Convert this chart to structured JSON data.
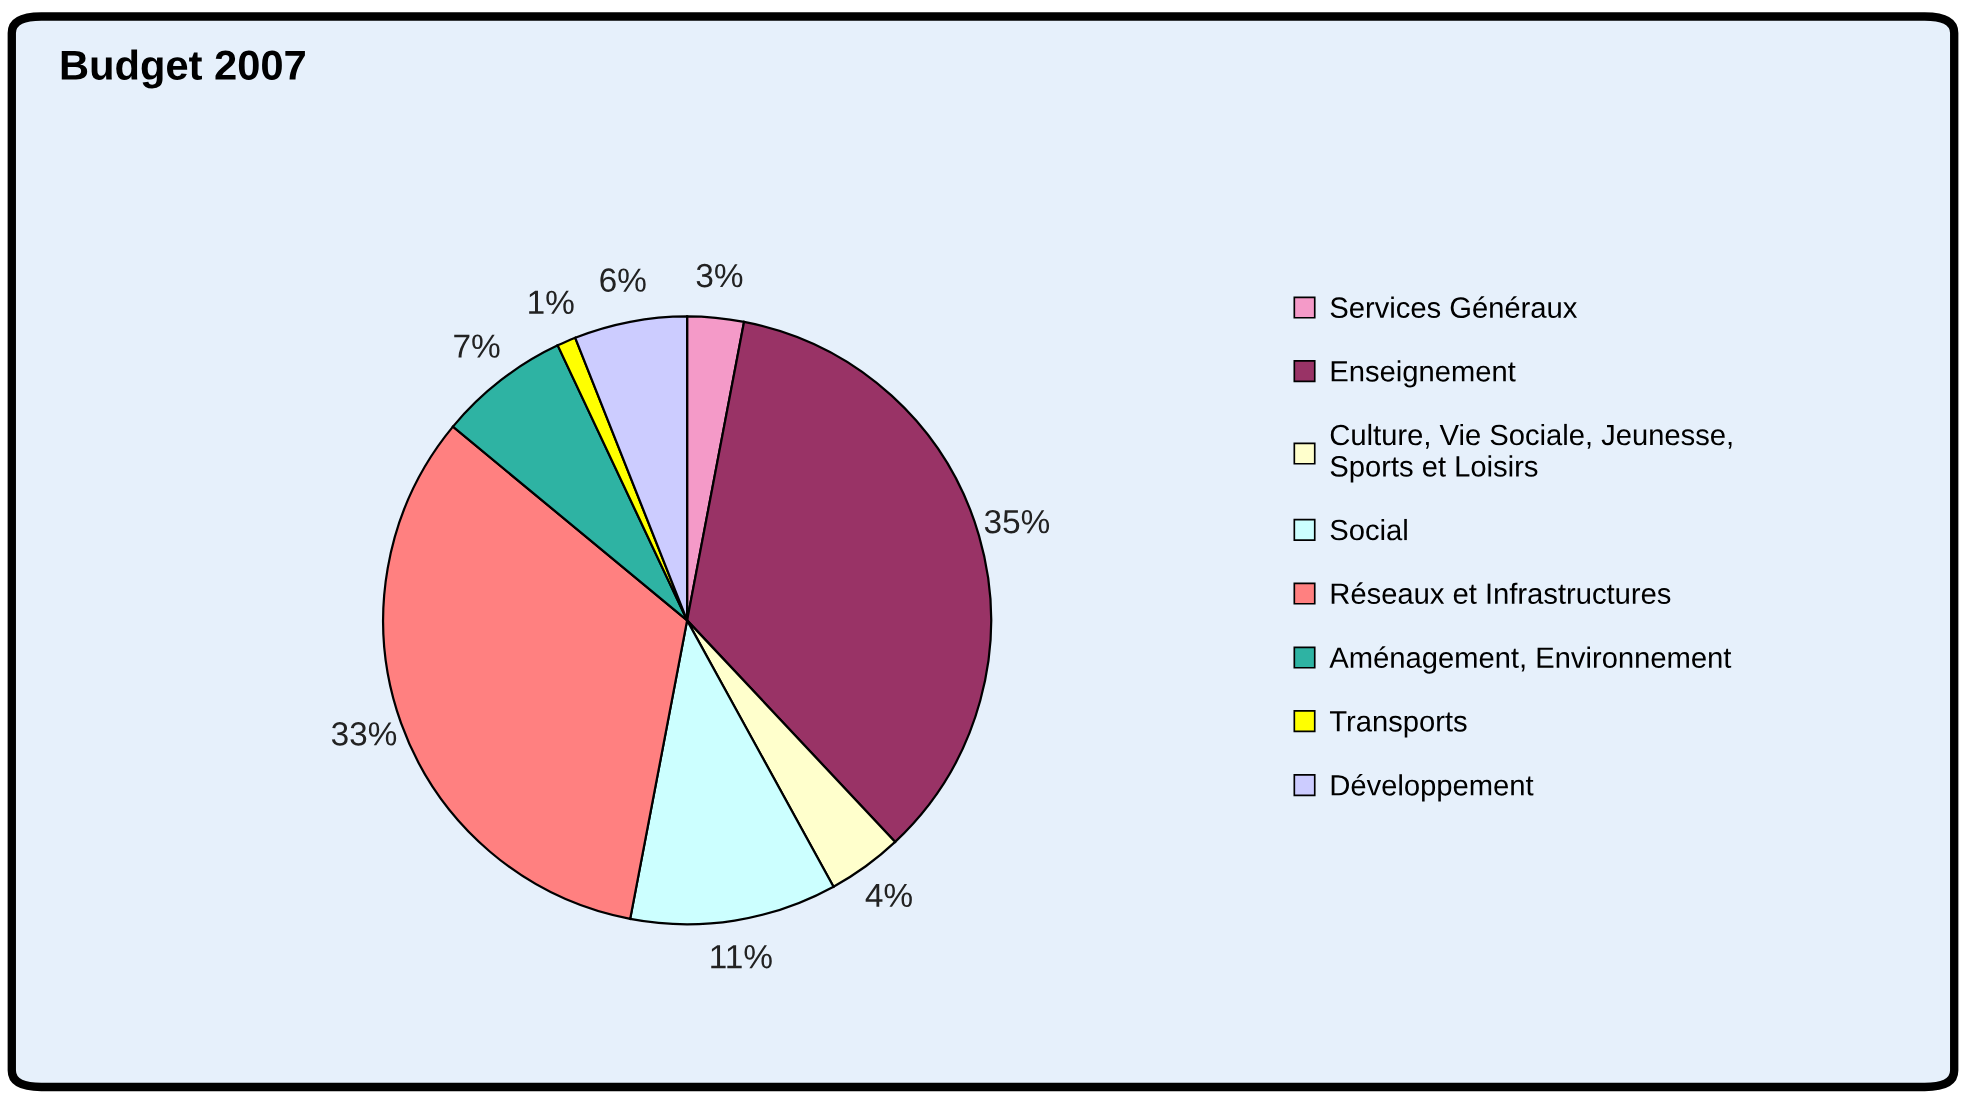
{
  "chart_data": {
    "type": "pie",
    "title": "Budget 2007",
    "categories": [
      "Services Généraux",
      "Enseignement",
      "Culture, Vie Sociale, Jeunesse,\nSports et Loisirs",
      "Social",
      "Réseaux et Infrastructures",
      "Aménagement, Environnement",
      "Transports",
      "Développement"
    ],
    "values": [
      3,
      35,
      4,
      11,
      33,
      7,
      1,
      6
    ],
    "value_labels": [
      "3%",
      "35%",
      "4%",
      "11%",
      "33%",
      "7%",
      "1%",
      "6%"
    ],
    "colors": [
      "#f49ac8",
      "#993366",
      "#ffffcc",
      "#ccffff",
      "#ff8080",
      "#2eb3a3",
      "#ffff00",
      "#ccccff"
    ],
    "legend": "right"
  }
}
